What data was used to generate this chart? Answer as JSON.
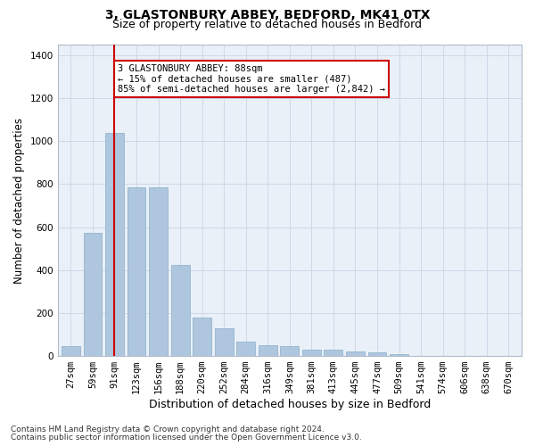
{
  "title1": "3, GLASTONBURY ABBEY, BEDFORD, MK41 0TX",
  "title2": "Size of property relative to detached houses in Bedford",
  "xlabel": "Distribution of detached houses by size in Bedford",
  "ylabel": "Number of detached properties",
  "categories": [
    "27sqm",
    "59sqm",
    "91sqm",
    "123sqm",
    "156sqm",
    "188sqm",
    "220sqm",
    "252sqm",
    "284sqm",
    "316sqm",
    "349sqm",
    "381sqm",
    "413sqm",
    "445sqm",
    "477sqm",
    "509sqm",
    "541sqm",
    "574sqm",
    "606sqm",
    "638sqm",
    "670sqm"
  ],
  "values": [
    45,
    575,
    1040,
    785,
    785,
    425,
    180,
    130,
    65,
    50,
    45,
    30,
    28,
    20,
    15,
    10,
    0,
    0,
    0,
    0,
    0
  ],
  "bar_color": "#aec6de",
  "bar_edge_color": "#8aaec8",
  "highlight_index": 2,
  "vline_color": "#cc0000",
  "annotation_text": "3 GLASTONBURY ABBEY: 88sqm\n← 15% of detached houses are smaller (487)\n85% of semi-detached houses are larger (2,842) →",
  "annotation_box_color": "#cc0000",
  "grid_color": "#d0d8e8",
  "background_color": "#eaf0f8",
  "ylim": [
    0,
    1450
  ],
  "yticks": [
    0,
    200,
    400,
    600,
    800,
    1000,
    1200,
    1400
  ],
  "footer1": "Contains HM Land Registry data © Crown copyright and database right 2024.",
  "footer2": "Contains public sector information licensed under the Open Government Licence v3.0.",
  "title1_fontsize": 10,
  "title2_fontsize": 9,
  "ylabel_fontsize": 8.5,
  "xlabel_fontsize": 9,
  "tick_fontsize": 7.5,
  "annotation_fontsize": 7.5,
  "footer_fontsize": 6.5
}
